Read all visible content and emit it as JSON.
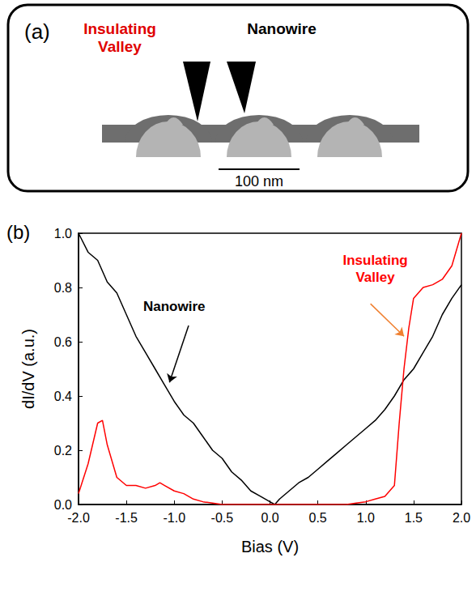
{
  "panel_a": {
    "panel_label": "(a)",
    "labels": [
      {
        "text": "Insulating Valley",
        "color": "#e00000"
      },
      {
        "text": "Nanowire",
        "color": "#000000"
      }
    ],
    "scale_bar": "100 nm"
  },
  "chart_data": {
    "type": "line",
    "panel_label": "(b)",
    "x_label": "Bias (V)",
    "y_label": "dI/dV (a.u.)",
    "xlim": [
      -2.0,
      2.0
    ],
    "xticks": [
      {
        "value": -2.0,
        "label": "-2.0"
      },
      {
        "value": -1.5,
        "label": "-1.5"
      },
      {
        "value": -1.0,
        "label": "-1.0"
      },
      {
        "value": -0.5,
        "label": "-0.5"
      },
      {
        "value": 0,
        "label": "0.0"
      },
      {
        "value": 0.5,
        "label": "0.5"
      },
      {
        "value": 1.0,
        "label": "1.0"
      },
      {
        "value": 1.5,
        "label": "1.5"
      },
      {
        "value": 2.0,
        "label": "2.0"
      }
    ],
    "ylim": [
      0,
      1.0
    ],
    "yticks": [
      {
        "value": 0,
        "label": "0.0"
      },
      {
        "value": 0.2,
        "label": "0.2"
      },
      {
        "value": 0.4,
        "label": "0.4"
      },
      {
        "value": 0.6,
        "label": "0.6"
      },
      {
        "value": 0.8,
        "label": "0.8"
      },
      {
        "value": 1.0,
        "label": "1.0"
      }
    ],
    "grid": false,
    "series": [
      {
        "name": "Nanowire",
        "color": "#000000",
        "line_style": "solid",
        "marker": "none",
        "x": [
          -2.0,
          -1.9,
          -1.8,
          -1.7,
          -1.6,
          -1.5,
          -1.4,
          -1.3,
          -1.2,
          -1.1,
          -1.0,
          -0.9,
          -0.8,
          -0.7,
          -0.6,
          -0.5,
          -0.4,
          -0.3,
          -0.2,
          -0.1,
          0.0,
          0.05,
          0.1,
          0.2,
          0.3,
          0.4,
          0.5,
          0.6,
          0.7,
          0.8,
          0.9,
          1.0,
          1.1,
          1.2,
          1.3,
          1.4,
          1.5,
          1.6,
          1.7,
          1.8,
          1.9,
          2.0
        ],
        "values": [
          1.0,
          0.93,
          0.9,
          0.82,
          0.78,
          0.7,
          0.62,
          0.56,
          0.5,
          0.44,
          0.38,
          0.33,
          0.3,
          0.25,
          0.2,
          0.17,
          0.12,
          0.09,
          0.05,
          0.03,
          0.01,
          0.0,
          0.02,
          0.05,
          0.08,
          0.1,
          0.13,
          0.16,
          0.19,
          0.22,
          0.25,
          0.28,
          0.31,
          0.35,
          0.4,
          0.46,
          0.5,
          0.56,
          0.62,
          0.7,
          0.76,
          0.81
        ]
      },
      {
        "name": "Insulating Valley",
        "color": "#ff0000",
        "line_style": "solid",
        "marker": "none",
        "x": [
          -2.0,
          -1.9,
          -1.8,
          -1.75,
          -1.7,
          -1.6,
          -1.5,
          -1.4,
          -1.3,
          -1.2,
          -1.15,
          -1.1,
          -1.0,
          -0.9,
          -0.8,
          -0.7,
          -0.6,
          -0.5,
          0.0,
          0.5,
          0.8,
          0.9,
          1.0,
          1.1,
          1.2,
          1.3,
          1.35,
          1.4,
          1.45,
          1.5,
          1.6,
          1.7,
          1.8,
          1.9,
          2.0
        ],
        "values": [
          0.04,
          0.15,
          0.3,
          0.31,
          0.22,
          0.1,
          0.07,
          0.07,
          0.06,
          0.07,
          0.08,
          0.07,
          0.05,
          0.04,
          0.02,
          0.01,
          0.005,
          0.0,
          0.0,
          0.0,
          0.0,
          0.005,
          0.01,
          0.02,
          0.03,
          0.07,
          0.3,
          0.5,
          0.65,
          0.76,
          0.8,
          0.81,
          0.83,
          0.88,
          1.0
        ]
      }
    ],
    "annotations": [
      {
        "text": "Nanowire",
        "color": "#000000",
        "x": -1.0,
        "y": 0.73,
        "arrow": {
          "from": [
            -0.85,
            0.66
          ],
          "to": [
            -1.05,
            0.45
          ],
          "color": "#000000"
        }
      },
      {
        "text": "Insulating Valley",
        "color": "#ff0000",
        "x": 1.1,
        "y": 0.87,
        "arrow": {
          "from": [
            1.05,
            0.74
          ],
          "to": [
            1.4,
            0.62
          ],
          "color": "#f08030"
        }
      }
    ]
  }
}
